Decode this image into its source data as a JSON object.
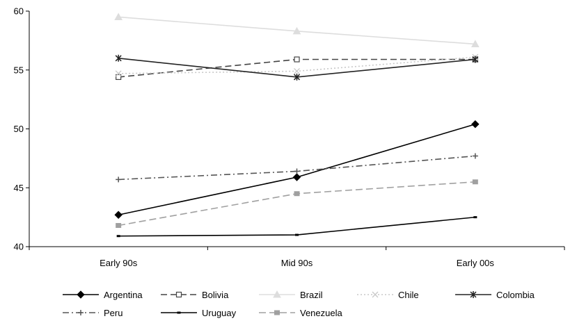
{
  "chart_data": {
    "type": "line",
    "categories": [
      "Early 90s",
      "Mid 90s",
      "Early 00s"
    ],
    "ylim": [
      40,
      60
    ],
    "yticks": [
      40,
      45,
      50,
      55,
      60
    ],
    "grid": false,
    "legend_position": "bottom",
    "series": [
      {
        "name": "Argentina",
        "values": [
          42.7,
          45.9,
          50.4
        ],
        "color": "#000000",
        "dash": "",
        "marker": "diamond"
      },
      {
        "name": "Bolivia",
        "values": [
          54.4,
          55.9,
          55.9
        ],
        "color": "#444444",
        "dash": "9,5",
        "marker": "square-open"
      },
      {
        "name": "Brazil",
        "values": [
          59.5,
          58.3,
          57.2
        ],
        "color": "#dddddd",
        "dash": "",
        "marker": "triangle"
      },
      {
        "name": "Chile",
        "values": [
          54.7,
          54.9,
          56.1
        ],
        "color": "#c8c8c8",
        "dash": "2,3",
        "marker": "x"
      },
      {
        "name": "Colombia",
        "values": [
          56.0,
          54.4,
          55.9
        ],
        "color": "#222222",
        "dash": "",
        "marker": "asterisk"
      },
      {
        "name": "Peru",
        "values": [
          45.7,
          46.4,
          47.7
        ],
        "color": "#555555",
        "dash": "9,4,2,4",
        "marker": "plus"
      },
      {
        "name": "Uruguay",
        "values": [
          40.9,
          41.0,
          42.5
        ],
        "color": "#000000",
        "dash": "",
        "marker": "dash"
      },
      {
        "name": "Venezuela",
        "values": [
          41.8,
          44.5,
          45.5
        ],
        "color": "#a0a0a0",
        "dash": "10,5",
        "marker": "square-filled"
      }
    ]
  }
}
